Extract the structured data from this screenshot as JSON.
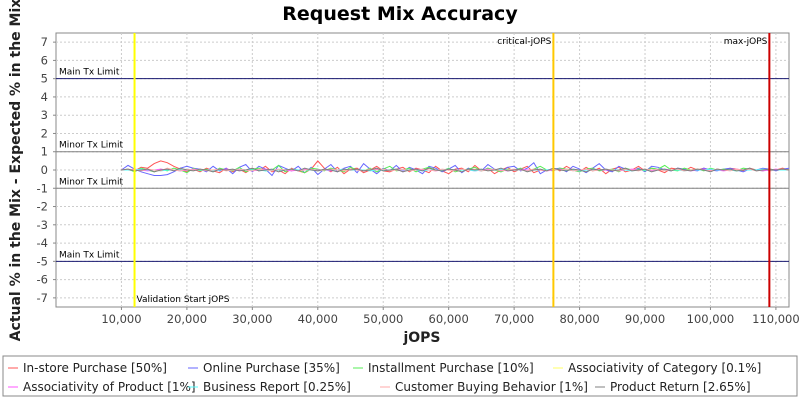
{
  "chart_data": {
    "type": "line",
    "title": "Request Mix Accuracy",
    "xlabel": "jOPS",
    "ylabel": "Actual % in the Mix - Expected % in the Mix",
    "xlim": [
      0,
      112000
    ],
    "ylim": [
      -7.5,
      7.5
    ],
    "x_ticks": [
      10000,
      20000,
      30000,
      40000,
      50000,
      60000,
      70000,
      80000,
      90000,
      100000,
      110000
    ],
    "x_tick_labels": [
      "10,000",
      "20,000",
      "30,000",
      "40,000",
      "50,000",
      "60,000",
      "70,000",
      "80,000",
      "90,000",
      "100,000",
      "110,000"
    ],
    "y_ticks": [
      -7,
      -6,
      -5,
      -4,
      -3,
      -2,
      -1,
      0,
      1,
      2,
      3,
      4,
      5,
      6,
      7
    ],
    "grid": true,
    "legend_position": "bottom",
    "reference_lines": {
      "horizontal": [
        {
          "y": 5,
          "label": "Main Tx Limit",
          "label_side": "above",
          "color": "#191970"
        },
        {
          "y": 1,
          "label": "Minor Tx Limit",
          "label_side": "above",
          "color": "#808080"
        },
        {
          "y": -1,
          "label": "Minor Tx Limit",
          "label_side": "above",
          "color": "#808080"
        },
        {
          "y": -5,
          "label": "Main Tx Limit",
          "label_side": "above",
          "color": "#191970"
        }
      ],
      "vertical": [
        {
          "x": 12000,
          "label": "Validation Start jOPS",
          "label_pos": "bottom-right",
          "color": "#ffff00"
        },
        {
          "x": 76000,
          "label": "critical-jOPS",
          "label_pos": "top-left",
          "color": "#ffc800"
        },
        {
          "x": 109000,
          "label": "max-jOPS",
          "label_pos": "top-left",
          "color": "#cc0000"
        }
      ]
    },
    "x": [
      10000,
      11000,
      12000,
      13000,
      14000,
      15000,
      16000,
      17000,
      18000,
      19000,
      20000,
      21000,
      22000,
      23000,
      24000,
      25000,
      26000,
      27000,
      28000,
      29000,
      30000,
      31000,
      32000,
      33000,
      34000,
      35000,
      36000,
      37000,
      38000,
      39000,
      40000,
      41000,
      42000,
      43000,
      44000,
      45000,
      46000,
      47000,
      48000,
      49000,
      50000,
      51000,
      52000,
      53000,
      54000,
      55000,
      56000,
      57000,
      58000,
      59000,
      60000,
      61000,
      62000,
      63000,
      64000,
      65000,
      66000,
      67000,
      68000,
      69000,
      70000,
      71000,
      72000,
      73000,
      74000,
      75000,
      76000,
      77000,
      78000,
      79000,
      80000,
      81000,
      82000,
      83000,
      84000,
      85000,
      86000,
      87000,
      88000,
      89000,
      90000,
      91000,
      92000,
      93000,
      94000,
      95000,
      96000,
      97000,
      98000,
      99000,
      100000,
      101000,
      102000,
      103000,
      104000,
      105000,
      106000,
      107000,
      108000,
      109000,
      110000,
      111000,
      112000
    ],
    "series": [
      {
        "name": "In-store Purchase [50%]",
        "color": "#ff5555",
        "values": [
          0.05,
          0.0,
          -0.05,
          0.15,
          0.1,
          0.35,
          0.5,
          0.4,
          0.2,
          0.05,
          -0.1,
          0.05,
          -0.1,
          0.1,
          -0.05,
          -0.15,
          0.1,
          -0.1,
          0.05,
          -0.15,
          0.1,
          -0.05,
          0.2,
          -0.1,
          0.0,
          -0.2,
          0.1,
          -0.05,
          -0.15,
          0.05,
          0.5,
          0.1,
          -0.1,
          0.15,
          -0.2,
          0.05,
          0.1,
          -0.15,
          0.0,
          0.2,
          -0.05,
          -0.1,
          0.05,
          0.15,
          -0.1,
          0.1,
          0.0,
          -0.15,
          0.2,
          -0.05,
          -0.2,
          0.05,
          0.1,
          -0.1,
          0.25,
          -0.05,
          0.1,
          -0.2,
          0.0,
          0.15,
          -0.1,
          0.05,
          0.2,
          -0.15,
          0.0,
          -0.05,
          0.1,
          -0.05,
          0.2,
          0.0,
          -0.1,
          0.15,
          -0.05,
          0.1,
          -0.2,
          0.05,
          0.15,
          -0.1,
          0.0,
          0.2,
          -0.05,
          0.1,
          0.0,
          -0.15,
          0.1,
          0.05,
          -0.05,
          0.15,
          0.0,
          0.1,
          -0.05,
          0.05,
          0.0,
          0.1,
          0.05,
          -0.05,
          0.1,
          0.0,
          0.05,
          -0.05,
          0.0,
          0.1,
          0.0
        ]
      },
      {
        "name": "Online Purchase [35%]",
        "color": "#6666ff",
        "values": [
          0.0,
          0.25,
          0.05,
          -0.1,
          -0.2,
          -0.3,
          -0.3,
          -0.25,
          -0.1,
          0.1,
          0.2,
          0.1,
          0.05,
          -0.1,
          0.2,
          -0.05,
          0.1,
          -0.2,
          0.15,
          0.3,
          -0.1,
          0.2,
          0.05,
          -0.3,
          0.25,
          0.1,
          -0.05,
          0.2,
          -0.15,
          0.15,
          -0.25,
          0.05,
          0.3,
          -0.1,
          0.1,
          0.2,
          -0.15,
          0.35,
          0.05,
          -0.2,
          0.1,
          -0.05,
          0.25,
          -0.1,
          0.15,
          0.0,
          -0.2,
          0.2,
          0.1,
          -0.1,
          0.05,
          0.25,
          -0.15,
          0.1,
          0.0,
          -0.05,
          0.3,
          0.05,
          -0.1,
          0.15,
          0.2,
          -0.05,
          0.1,
          0.4,
          -0.2,
          0.0,
          0.05,
          0.1,
          -0.1,
          0.2,
          0.05,
          -0.15,
          0.1,
          0.35,
          0.0,
          -0.1,
          0.2,
          0.05,
          -0.05,
          0.1,
          -0.1,
          0.2,
          0.15,
          0.0,
          -0.05,
          0.1,
          0.05,
          0.0,
          -0.05,
          0.1,
          0.0,
          -0.05,
          0.05,
          0.1,
          0.0,
          -0.1,
          0.05,
          0.0,
          0.1,
          0.05,
          -0.05,
          0.05,
          0.1
        ]
      },
      {
        "name": "Installment Purchase [10%]",
        "color": "#55ee55",
        "values": [
          0.0,
          0.05,
          -0.1,
          0.1,
          0.0,
          -0.1,
          0.05,
          -0.05,
          0.1,
          0.0,
          -0.15,
          0.1,
          -0.05,
          0.05,
          -0.1,
          0.1,
          0.0,
          -0.05,
          0.15,
          -0.1,
          0.05,
          0.1,
          -0.05,
          0.0,
          0.25,
          -0.1,
          0.05,
          0.0,
          -0.15,
          0.1,
          0.05,
          -0.05,
          0.1,
          0.0,
          -0.1,
          0.15,
          0.0,
          -0.05,
          0.1,
          -0.1,
          0.05,
          0.2,
          -0.05,
          0.0,
          0.1,
          -0.1,
          0.05,
          0.15,
          0.0,
          -0.05,
          0.1,
          -0.1,
          0.0,
          0.05,
          0.15,
          -0.05,
          0.1,
          0.0,
          -0.1,
          0.05,
          0.0,
          0.1,
          -0.05,
          0.05,
          0.2,
          0.0,
          -0.05,
          0.1,
          0.05,
          0.0,
          -0.1,
          0.05,
          0.1,
          -0.05,
          0.0,
          0.05,
          -0.1,
          0.1,
          0.0,
          0.05,
          -0.05,
          0.1,
          0.05,
          0.25,
          0.0,
          -0.05,
          0.1,
          0.0,
          0.05,
          -0.05,
          0.1,
          0.0,
          0.05,
          0.0,
          -0.05,
          0.1,
          0.05,
          0.0,
          -0.05,
          0.05,
          0.0,
          0.05,
          0.0
        ]
      },
      {
        "name": "Associativity of Category [0.1%]",
        "color": "#ffff66",
        "values": [
          0.0,
          0.0,
          0.0,
          0.0,
          0.0,
          0.0,
          0.0,
          0.0,
          0.0,
          0.0,
          0.0,
          0.0,
          0.0,
          0.0,
          0.0,
          0.0,
          0.0,
          0.0,
          0.0,
          0.0,
          0.0,
          0.0,
          0.0,
          0.0,
          0.0,
          0.0,
          0.0,
          0.0,
          0.0,
          0.0,
          0.0,
          0.0,
          0.0,
          0.0,
          0.0,
          0.0,
          0.0,
          0.0,
          0.0,
          0.0,
          0.0,
          0.0,
          0.0,
          0.0,
          0.0,
          0.0,
          0.0,
          0.0,
          0.0,
          0.0,
          0.0,
          0.0,
          0.0,
          0.0,
          0.0,
          0.0,
          0.0,
          0.0,
          0.0,
          0.0,
          0.0,
          0.0,
          0.0,
          0.0,
          0.0,
          0.0,
          0.0,
          0.0,
          0.0,
          0.0,
          0.0,
          0.0,
          0.0,
          0.0,
          0.0,
          0.0,
          0.0,
          0.0,
          0.0,
          0.0,
          0.0,
          0.0,
          0.0,
          0.0,
          0.0,
          0.0,
          0.0,
          0.0,
          0.0,
          0.0,
          0.0,
          0.0,
          0.0,
          0.0,
          0.0,
          0.0,
          0.0,
          0.0,
          0.0,
          0.0,
          0.0,
          0.0,
          0.0
        ]
      },
      {
        "name": "Associativity of Product [1%]",
        "color": "#ff55ff",
        "values": [
          0.0,
          0.0,
          0.05,
          0.0,
          -0.05,
          0.0,
          0.05,
          0.0,
          0.0,
          -0.05,
          0.0,
          0.05,
          0.0,
          0.0,
          -0.05,
          0.0,
          0.05,
          0.0,
          0.0,
          0.0,
          -0.05,
          0.0,
          0.05,
          0.0,
          0.0,
          0.0,
          -0.05,
          0.0,
          0.05,
          0.0,
          0.0,
          0.0,
          -0.05,
          0.0,
          0.05,
          0.0,
          0.0,
          -0.05,
          0.0,
          0.05,
          0.0,
          0.0,
          0.0,
          -0.05,
          0.0,
          0.05,
          0.0,
          0.0,
          -0.05,
          0.0,
          0.05,
          0.0,
          0.0,
          0.0,
          -0.05,
          0.0,
          0.05,
          0.0,
          0.0,
          -0.05,
          0.0,
          0.05,
          0.0,
          0.0,
          0.0,
          -0.05,
          0.0,
          0.05,
          0.0,
          0.0,
          -0.05,
          0.0,
          0.05,
          0.0,
          0.0,
          0.0,
          -0.05,
          0.0,
          0.05,
          0.0,
          0.0,
          -0.05,
          0.0,
          0.05,
          0.0,
          0.0,
          0.0,
          -0.05,
          0.0,
          0.05,
          0.0,
          0.0,
          -0.05,
          0.0,
          0.05,
          0.0,
          0.0,
          0.0,
          -0.05,
          0.0,
          0.05,
          0.0,
          0.0
        ]
      },
      {
        "name": "Business Report [0.25%]",
        "color": "#55ffff",
        "values": [
          0.0,
          0.0,
          0.0,
          0.05,
          0.0,
          0.0,
          -0.05,
          0.0,
          0.0,
          0.0,
          0.05,
          0.0,
          0.0,
          0.0,
          -0.05,
          0.0,
          0.0,
          0.0,
          0.05,
          0.0,
          0.0,
          0.0,
          -0.05,
          0.0,
          0.0,
          0.0,
          0.05,
          0.0,
          0.0,
          0.0,
          -0.05,
          0.0,
          0.0,
          0.0,
          0.05,
          0.0,
          0.0,
          0.0,
          -0.05,
          0.0,
          0.0,
          0.0,
          0.05,
          0.0,
          0.0,
          0.0,
          -0.05,
          0.0,
          0.0,
          0.0,
          0.05,
          0.0,
          0.0,
          0.0,
          -0.05,
          0.0,
          0.0,
          0.0,
          0.05,
          0.0,
          0.0,
          0.0,
          -0.05,
          0.0,
          0.0,
          0.0,
          0.05,
          0.0,
          0.0,
          0.0,
          -0.05,
          0.0,
          0.0,
          0.0,
          0.05,
          0.0,
          0.0,
          0.0,
          -0.05,
          0.0,
          0.0,
          0.0,
          0.05,
          0.0,
          0.0,
          0.0,
          -0.05,
          0.0,
          0.0,
          0.0,
          0.05,
          0.0,
          0.0,
          0.0,
          -0.05,
          0.0,
          0.0,
          0.0,
          0.05,
          0.0,
          0.0,
          0.0,
          0.0
        ]
      },
      {
        "name": "Customer Buying Behavior [1%]",
        "color": "#ffaaaa",
        "values": [
          0.0,
          0.05,
          0.0,
          -0.05,
          0.05,
          0.0,
          -0.05,
          0.1,
          0.0,
          -0.05,
          0.05,
          0.0,
          0.05,
          -0.05,
          0.0,
          0.05,
          -0.05,
          0.0,
          0.05,
          0.0,
          -0.05,
          0.05,
          0.0,
          -0.05,
          0.05,
          0.0,
          0.05,
          -0.05,
          0.0,
          0.05,
          -0.05,
          0.0,
          0.05,
          0.0,
          -0.05,
          0.05,
          0.0,
          -0.05,
          0.05,
          0.0,
          0.05,
          -0.05,
          0.0,
          0.05,
          -0.05,
          0.0,
          0.05,
          0.0,
          -0.05,
          0.05,
          0.0,
          -0.05,
          0.05,
          0.0,
          0.05,
          -0.05,
          0.0,
          0.05,
          -0.05,
          0.0,
          0.05,
          0.0,
          -0.05,
          0.05,
          0.0,
          -0.05,
          0.05,
          0.0,
          0.05,
          -0.05,
          0.0,
          0.05,
          -0.05,
          0.0,
          0.05,
          0.0,
          -0.05,
          0.05,
          0.0,
          -0.05,
          0.05,
          0.0,
          0.05,
          -0.05,
          0.0,
          0.05,
          -0.05,
          0.0,
          0.05,
          0.0,
          -0.05,
          0.05,
          0.0,
          -0.05,
          0.05,
          0.0,
          0.05,
          -0.05,
          0.0,
          0.05,
          0.0,
          0.05,
          0.0
        ]
      },
      {
        "name": "Product Return [2.65%]",
        "color": "#808080",
        "values": [
          0.0,
          0.05,
          -0.05,
          0.0,
          0.05,
          -0.1,
          0.0,
          0.05,
          -0.05,
          0.1,
          0.0,
          -0.05,
          0.05,
          0.0,
          -0.1,
          0.05,
          0.0,
          0.05,
          -0.05,
          0.0,
          0.1,
          -0.05,
          0.0,
          0.05,
          -0.1,
          0.0,
          0.05,
          -0.05,
          0.1,
          0.0,
          -0.05,
          0.05,
          0.0,
          -0.1,
          0.05,
          0.0,
          0.05,
          -0.05,
          0.0,
          0.1,
          -0.05,
          0.0,
          0.05,
          -0.1,
          0.0,
          0.05,
          -0.05,
          0.1,
          0.0,
          -0.05,
          0.05,
          0.0,
          -0.1,
          0.05,
          0.0,
          0.05,
          -0.05,
          0.0,
          0.1,
          -0.05,
          0.0,
          0.05,
          -0.1,
          0.0,
          0.05,
          -0.05,
          0.1,
          0.0,
          -0.05,
          0.05,
          0.0,
          -0.1,
          0.05,
          0.0,
          0.05,
          -0.05,
          0.0,
          0.1,
          -0.05,
          0.0,
          0.05,
          -0.1,
          0.0,
          0.05,
          -0.05,
          0.1,
          0.0,
          -0.05,
          0.05,
          0.0,
          -0.1,
          0.05,
          0.0,
          0.05,
          -0.05,
          0.0,
          0.1,
          -0.05,
          0.0,
          0.05,
          0.0,
          0.05,
          0.0
        ]
      }
    ]
  }
}
